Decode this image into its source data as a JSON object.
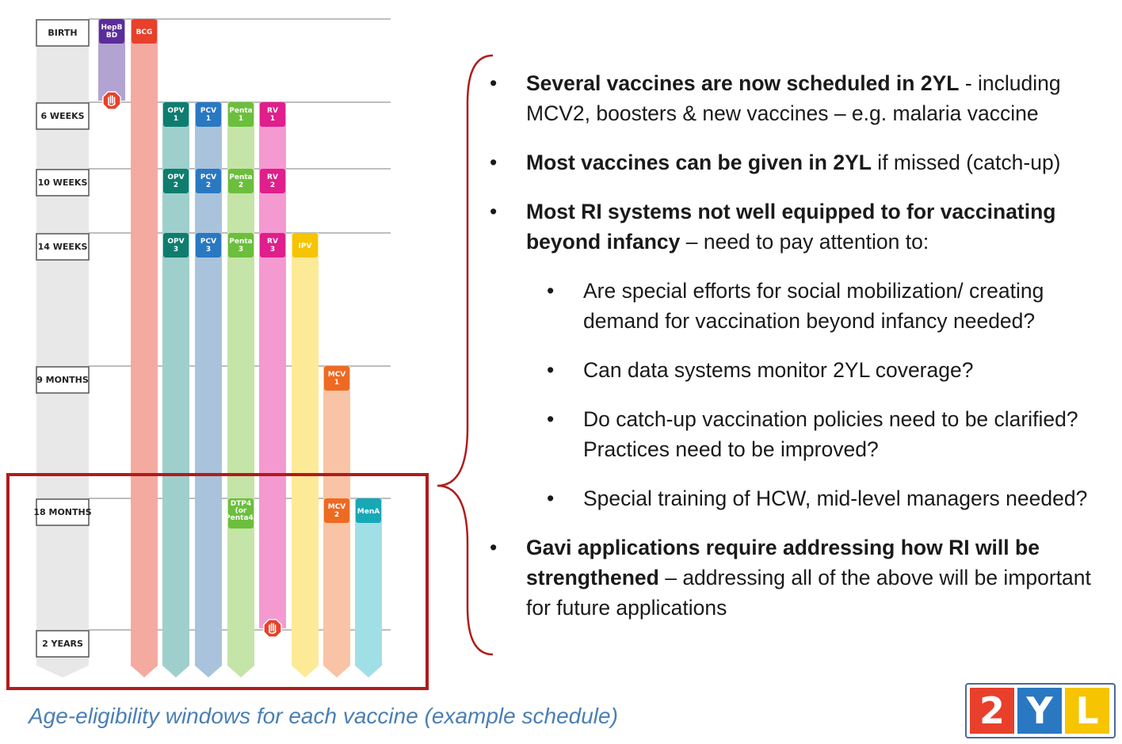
{
  "schedule": {
    "ages": [
      "BIRTH",
      "6 WEEKS",
      "10 WEEKS",
      "14 WEEKS",
      "9 MONTHS",
      "18 MONTHS",
      "2 YEARS"
    ],
    "vaccines": [
      {
        "key": "hepb",
        "color": "#b3a3d3",
        "chip_color": "#5b2d9a",
        "doses": [
          {
            "age": 0,
            "label": [
              "HepB",
              "BD"
            ]
          }
        ],
        "end": "stop-6w"
      },
      {
        "key": "bcg",
        "color": "#f5aaa0",
        "chip_color": "#e8402a",
        "doses": [
          {
            "age": 0,
            "label": [
              "BCG"
            ]
          }
        ],
        "end": "arrow"
      },
      {
        "key": "opv",
        "color": "#9fcfcc",
        "chip_color": "#0e7d6f",
        "doses": [
          {
            "age": 1,
            "label": [
              "OPV",
              "1"
            ]
          },
          {
            "age": 2,
            "label": [
              "OPV",
              "2"
            ]
          },
          {
            "age": 3,
            "label": [
              "OPV",
              "3"
            ]
          }
        ],
        "end": "arrow"
      },
      {
        "key": "pcv",
        "color": "#a9c3dd",
        "chip_color": "#2a78c2",
        "doses": [
          {
            "age": 1,
            "label": [
              "PCV",
              "1"
            ]
          },
          {
            "age": 2,
            "label": [
              "PCV",
              "2"
            ]
          },
          {
            "age": 3,
            "label": [
              "PCV",
              "3"
            ]
          }
        ],
        "end": "arrow"
      },
      {
        "key": "penta",
        "color": "#c5e4a7",
        "chip_color": "#6bbf3c",
        "doses": [
          {
            "age": 1,
            "label": [
              "Penta",
              "1"
            ]
          },
          {
            "age": 2,
            "label": [
              "Penta",
              "2"
            ]
          },
          {
            "age": 3,
            "label": [
              "Penta",
              "3"
            ]
          },
          {
            "age": 5,
            "label": [
              "DTP4",
              "(or",
              "Penta4)"
            ]
          }
        ],
        "end": "arrow"
      },
      {
        "key": "rv",
        "color": "#f59ad0",
        "chip_color": "#e01e8c",
        "doses": [
          {
            "age": 1,
            "label": [
              "RV",
              "1"
            ]
          },
          {
            "age": 2,
            "label": [
              "RV",
              "2"
            ]
          },
          {
            "age": 3,
            "label": [
              "RV",
              "3"
            ]
          }
        ],
        "end": "stop-2y"
      },
      {
        "key": "ipv",
        "color": "#fdea97",
        "chip_color": "#f6c400",
        "doses": [
          {
            "age": 3,
            "label": [
              "IPV"
            ]
          }
        ],
        "end": "arrow"
      },
      {
        "key": "mcv",
        "color": "#f9c4a5",
        "chip_color": "#ee6a22",
        "doses": [
          {
            "age": 4,
            "label": [
              "MCV",
              "1"
            ]
          },
          {
            "age": 5,
            "label": [
              "MCV",
              "2"
            ]
          }
        ],
        "end": "arrow"
      },
      {
        "key": "mena",
        "color": "#a1dfe7",
        "chip_color": "#17a8b6",
        "doses": [
          {
            "age": 5,
            "label": [
              "MenA"
            ]
          }
        ],
        "end": "arrow"
      }
    ],
    "highlight_color": "#b01c1c"
  },
  "bullets": [
    {
      "level": 1,
      "bold": "Several vaccines are now scheduled in 2YL",
      "text": "  - including MCV2, boosters & new vaccines – e.g. malaria vaccine"
    },
    {
      "level": 1,
      "bold": "Most vaccines can be given in 2YL",
      "text": " if missed (catch-up)"
    },
    {
      "level": 1,
      "bold": "Most RI systems not well equipped to for vaccinating beyond infancy",
      "text": " – need to pay attention to:"
    },
    {
      "level": 2,
      "bold": "",
      "text": "Are special efforts for social mobilization/ creating demand for vaccination beyond infancy needed?"
    },
    {
      "level": 2,
      "bold": "",
      "text": "Can data systems monitor 2YL coverage?"
    },
    {
      "level": 2,
      "bold": "",
      "text": "Do catch-up vaccination policies need to be clarified?  Practices need to be improved?"
    },
    {
      "level": 2,
      "bold": "",
      "text": "Special training of HCW, mid-level managers needed?"
    },
    {
      "level": 1,
      "bold": "Gavi applications require addressing how RI will be strengthened",
      "text": " – addressing all of the above will be important for future applications"
    }
  ],
  "caption": "Age-eligibility windows for each vaccine (example schedule)",
  "logo": {
    "tiles": [
      {
        "char": "2",
        "color": "#e8402a"
      },
      {
        "char": "Y",
        "color": "#2a78c2"
      },
      {
        "char": "L",
        "color": "#f6c400"
      }
    ]
  },
  "brace_color": "#b01c1c"
}
